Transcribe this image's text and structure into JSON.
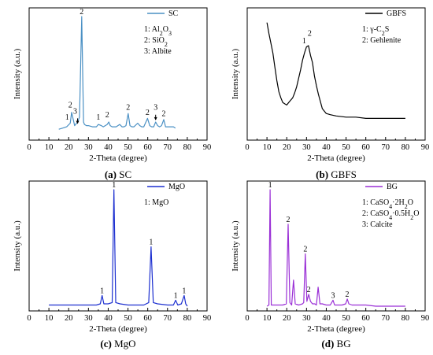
{
  "figure": {
    "xlabel": "2-Theta (degree)",
    "ylabel": "Intensity (a.u.)",
    "xticks": [
      "0",
      "10",
      "20",
      "30",
      "40",
      "50",
      "60",
      "70",
      "80",
      "90"
    ],
    "xlim": [
      0,
      90
    ]
  },
  "chart_data": [
    {
      "type": "line",
      "caption_prefix": "(a)",
      "caption_name": "SC",
      "color": "#4a90c4",
      "legend": "SC",
      "phases": [
        "1: Al2O3",
        "2: SiO2",
        "3: Albite"
      ],
      "xlabel": "2-Theta (degree)",
      "ylabel": "Intensity (a.u.)",
      "xlim": [
        0,
        90
      ],
      "ylim": [
        0,
        100
      ],
      "x": [
        15,
        17,
        19,
        20.8,
        21.5,
        23,
        24.5,
        25.5,
        26.6,
        27.5,
        28,
        29,
        30,
        32,
        33,
        34,
        35,
        36.5,
        37.5,
        38.5,
        39.5,
        40.3,
        41,
        42,
        43,
        44,
        45.8,
        47,
        48,
        49,
        50.1,
        51,
        52,
        53,
        54.9,
        56,
        57,
        58,
        59.9,
        61,
        62,
        63,
        64,
        65,
        66,
        67,
        68.1,
        69,
        70,
        71,
        72,
        73,
        74
      ],
      "y": [
        7,
        8,
        9,
        12,
        21,
        10,
        13,
        17,
        100,
        13,
        11,
        10,
        10,
        9,
        9,
        9,
        11,
        10,
        9,
        10,
        11,
        13,
        10,
        9,
        9,
        9,
        11,
        9,
        9,
        10,
        20,
        10,
        9,
        9,
        12,
        10,
        9,
        9,
        16,
        10,
        9,
        9,
        13,
        10,
        9,
        10,
        15,
        9,
        9,
        9,
        9,
        9,
        8
      ],
      "labels": [
        {
          "text": "2",
          "x": 26.6,
          "y": 100
        },
        {
          "text": "2",
          "x": 20.8,
          "y": 23
        },
        {
          "text": "1",
          "x": 19.2,
          "y": 13
        },
        {
          "text": "3",
          "x": 23.3,
          "y": 18
        },
        {
          "text": "1",
          "x": 35,
          "y": 13
        },
        {
          "text": "2",
          "x": 39.5,
          "y": 15
        },
        {
          "text": "2",
          "x": 50.1,
          "y": 21
        },
        {
          "text": "2",
          "x": 59.9,
          "y": 17
        },
        {
          "text": "3",
          "x": 64,
          "y": 21
        },
        {
          "text": "2",
          "x": 68.1,
          "y": 16
        }
      ],
      "arrows": [
        {
          "x": 24.5,
          "y_from": 16,
          "y_to": 12
        },
        {
          "x": 64,
          "y_from": 19,
          "y_to": 15
        }
      ]
    },
    {
      "type": "line",
      "caption_prefix": "(b)",
      "caption_name": "GBFS",
      "color": "#000000",
      "legend": "GBFS",
      "phases": [
        "1: γ-C2S",
        "2: Gehlenite"
      ],
      "xlabel": "2-Theta (degree)",
      "ylabel": "Intensity (a.u.)",
      "xlim": [
        0,
        90
      ],
      "ylim": [
        0,
        100
      ],
      "x": [
        10,
        11,
        12,
        13,
        14,
        15,
        16,
        17,
        18,
        19,
        20,
        21,
        22,
        23,
        24,
        25,
        26,
        27,
        28,
        29,
        30,
        31,
        31.5,
        32,
        33,
        34,
        35,
        36,
        37,
        38,
        39,
        40,
        42,
        45,
        50,
        55,
        60,
        65,
        70,
        75,
        80
      ],
      "y": [
        95,
        86,
        78,
        70,
        58,
        47,
        38,
        33,
        29,
        28,
        27,
        29,
        31,
        33,
        37,
        42,
        49,
        56,
        64,
        70,
        75,
        76,
        72,
        68,
        62,
        51,
        43,
        36,
        30,
        24,
        22,
        20,
        19,
        18,
        17,
        17,
        16,
        16,
        16,
        16,
        16
      ],
      "labels": [
        {
          "text": "1",
          "x": 28.8,
          "y": 76
        },
        {
          "text": "2",
          "x": 31.6,
          "y": 82
        }
      ]
    },
    {
      "type": "line",
      "caption_prefix": "(c)",
      "caption_name": "MgO",
      "color": "#1c2fd0",
      "legend": "MgO",
      "phases": [
        "1: MgO"
      ],
      "xlabel": "2-Theta (degree)",
      "ylabel": "Intensity (a.u.)",
      "xlim": [
        0,
        90
      ],
      "ylim": [
        0,
        100
      ],
      "x": [
        10,
        15,
        20,
        25,
        30,
        34,
        36,
        36.9,
        37.8,
        40,
        42,
        42.9,
        43.8,
        46,
        50,
        55,
        58,
        60.5,
        61.7,
        62.8,
        65,
        70,
        73,
        74.1,
        75.2,
        77,
        78.4,
        79.2,
        80
      ],
      "y": [
        3,
        3,
        3,
        3,
        3,
        3,
        4,
        11,
        4,
        4,
        5,
        100,
        5,
        4,
        3,
        3,
        3,
        5,
        52,
        5,
        4,
        3,
        3,
        7,
        3,
        4,
        11,
        4,
        2
      ],
      "labels": [
        {
          "text": "1",
          "x": 42.9,
          "y": 100
        },
        {
          "text": "1",
          "x": 61.7,
          "y": 52
        },
        {
          "text": "1",
          "x": 36.9,
          "y": 11
        },
        {
          "text": "1",
          "x": 74.1,
          "y": 7
        },
        {
          "text": "1",
          "x": 78.4,
          "y": 11
        }
      ]
    },
    {
      "type": "line",
      "caption_prefix": "(d)",
      "caption_name": "BG",
      "color": "#9a2fd6",
      "legend": "BG",
      "phases": [
        "1: CaSO4·2H2O",
        "2: CaSO4·0.5H2O",
        "3: Calcite"
      ],
      "xlabel": "2-Theta (degree)",
      "ylabel": "Intensity (a.u.)",
      "xlim": [
        0,
        90
      ],
      "ylim": [
        0,
        100
      ],
      "x": [
        10,
        11,
        11.6,
        12.2,
        14,
        16,
        18,
        19.8,
        20.7,
        21.6,
        22.5,
        23.4,
        24.3,
        26,
        28,
        28.6,
        29.4,
        30.2,
        31.1,
        32,
        33,
        34.2,
        35,
        35.9,
        36.8,
        38,
        40,
        42,
        43.4,
        44.2,
        46,
        48,
        49.8,
        50.6,
        51.4,
        53,
        56,
        60,
        65,
        70,
        75,
        80
      ],
      "y": [
        2,
        3,
        100,
        3,
        3,
        3,
        3,
        4,
        71,
        5,
        3,
        24,
        4,
        3,
        4,
        5,
        46,
        6,
        12,
        6,
        4,
        4,
        3,
        18,
        4,
        4,
        3,
        3,
        7,
        3,
        3,
        3,
        4,
        8,
        4,
        3,
        3,
        3,
        2,
        2,
        2,
        2
      ],
      "labels": [
        {
          "text": "1",
          "x": 11.6,
          "y": 100
        },
        {
          "text": "2",
          "x": 20.7,
          "y": 71
        },
        {
          "text": "2",
          "x": 29.4,
          "y": 46
        },
        {
          "text": "2",
          "x": 31.1,
          "y": 12
        },
        {
          "text": "3",
          "x": 43.4,
          "y": 7
        },
        {
          "text": "2",
          "x": 50.6,
          "y": 8
        }
      ]
    }
  ]
}
